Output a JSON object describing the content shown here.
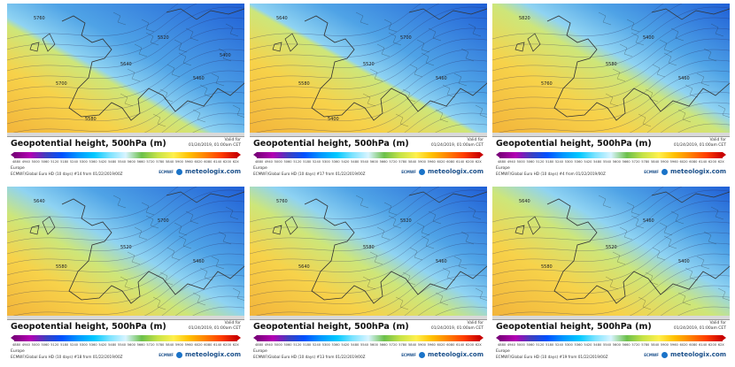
{
  "colors": {
    "ocean_warm": "#f2b33a",
    "mid_green": "#cde67a",
    "cool_blue": "#4fa3e6",
    "deep_blue": "#1f5fd6",
    "land_line": "#333333"
  },
  "panels": [
    {
      "title": "Geopotential height, 500hPa (m)",
      "valid_label": "Valid for",
      "valid_time": "01/24/2019, 01:00am CET",
      "region": "Europe",
      "model": "ECMWF/Global Euro HD (10 days) #14 from 01/22/2019/00Z",
      "brand": "meteologix.com",
      "agency": "ECMWF",
      "map_labels": [
        "5760",
        "5700",
        "5640",
        "5520",
        "5460",
        "5580",
        "5400"
      ],
      "scale_ticks": [
        "4880",
        "4940",
        "5000",
        "5060",
        "5120",
        "5180",
        "5240",
        "5300",
        "5360",
        "5420",
        "5480",
        "5540",
        "5600",
        "5660",
        "5720",
        "5780",
        "5840",
        "5900",
        "5960",
        "6020",
        "6080",
        "6140",
        "6200",
        "62X"
      ]
    },
    {
      "title": "Geopotential height, 500hPa (m)",
      "valid_label": "Valid for",
      "valid_time": "01/24/2019, 01:00am CET",
      "region": "Europe",
      "model": "ECMWF/Global Euro HD (10 days) #17 from 01/22/2019/00Z",
      "brand": "meteologix.com",
      "agency": "ECMWF",
      "map_labels": [
        "5640",
        "5580",
        "5520",
        "5700",
        "5460",
        "5400"
      ],
      "scale_ticks": [
        "4880",
        "4940",
        "5000",
        "5060",
        "5120",
        "5180",
        "5240",
        "5300",
        "5360",
        "5420",
        "5480",
        "5540",
        "5600",
        "5660",
        "5720",
        "5780",
        "5840",
        "5900",
        "5960",
        "6020",
        "6080",
        "6140",
        "6200",
        "62X"
      ]
    },
    {
      "title": "Geopotential height, 500hPa (m)",
      "valid_label": "Valid for",
      "valid_time": "01/24/2019, 01:00am CET",
      "region": "Europe",
      "model": "ECMWF/Global Euro HD (10 days) #4 from 01/22/2019/00Z",
      "brand": "meteologix.com",
      "agency": "ECMWF",
      "map_labels": [
        "5820",
        "5760",
        "5580",
        "5400",
        "5460"
      ],
      "scale_ticks": [
        "4880",
        "4940",
        "5000",
        "5060",
        "5120",
        "5180",
        "5240",
        "5300",
        "5360",
        "5420",
        "5480",
        "5540",
        "5600",
        "5660",
        "5720",
        "5780",
        "5840",
        "5900",
        "5960",
        "6020",
        "6080",
        "6140",
        "6200",
        "62X"
      ]
    },
    {
      "title": "Geopotential height, 500hPa (m)",
      "valid_label": "Valid for",
      "valid_time": "01/24/2019, 01:00am CET",
      "region": "Europe",
      "model": "ECMWF/Global Euro HD (10 days) #18 from 01/22/2019/00Z",
      "brand": "meteologix.com",
      "agency": "ECMWF",
      "map_labels": [
        "5640",
        "5580",
        "5520",
        "5700",
        "5460"
      ],
      "scale_ticks": [
        "4880",
        "4940",
        "5000",
        "5060",
        "5120",
        "5180",
        "5240",
        "5300",
        "5360",
        "5420",
        "5480",
        "5540",
        "5600",
        "5660",
        "5720",
        "5780",
        "5840",
        "5900",
        "5960",
        "6020",
        "6080",
        "6140",
        "6200",
        "62X"
      ]
    },
    {
      "title": "Geopotential height, 500hPa (m)",
      "valid_label": "Valid for",
      "valid_time": "01/24/2019, 01:00am CET",
      "region": "Europe",
      "model": "ECMWF/Global Euro HD (10 days) #13 from 01/22/2019/00Z",
      "brand": "meteologix.com",
      "agency": "ECMWF",
      "map_labels": [
        "5760",
        "5640",
        "5580",
        "5520",
        "5460"
      ],
      "scale_ticks": [
        "4880",
        "4940",
        "5000",
        "5060",
        "5120",
        "5180",
        "5240",
        "5300",
        "5360",
        "5420",
        "5480",
        "5540",
        "5600",
        "5660",
        "5720",
        "5780",
        "5840",
        "5900",
        "5960",
        "6020",
        "6080",
        "6140",
        "6200",
        "62X"
      ]
    },
    {
      "title": "Geopotential height, 500hPa (m)",
      "valid_label": "Valid for",
      "valid_time": "01/24/2019, 01:00am CET",
      "region": "Europe",
      "model": "ECMWF/Global Euro HD (10 days) #19 from 01/22/2019/00Z",
      "brand": "meteologix.com",
      "agency": "ECMWF",
      "map_labels": [
        "5640",
        "5580",
        "5520",
        "5460",
        "5400"
      ],
      "scale_ticks": [
        "4880",
        "4940",
        "5000",
        "5060",
        "5120",
        "5180",
        "5240",
        "5300",
        "5360",
        "5420",
        "5480",
        "5540",
        "5600",
        "5660",
        "5720",
        "5780",
        "5840",
        "5900",
        "5960",
        "6020",
        "6080",
        "6140",
        "6200",
        "62X"
      ]
    }
  ]
}
